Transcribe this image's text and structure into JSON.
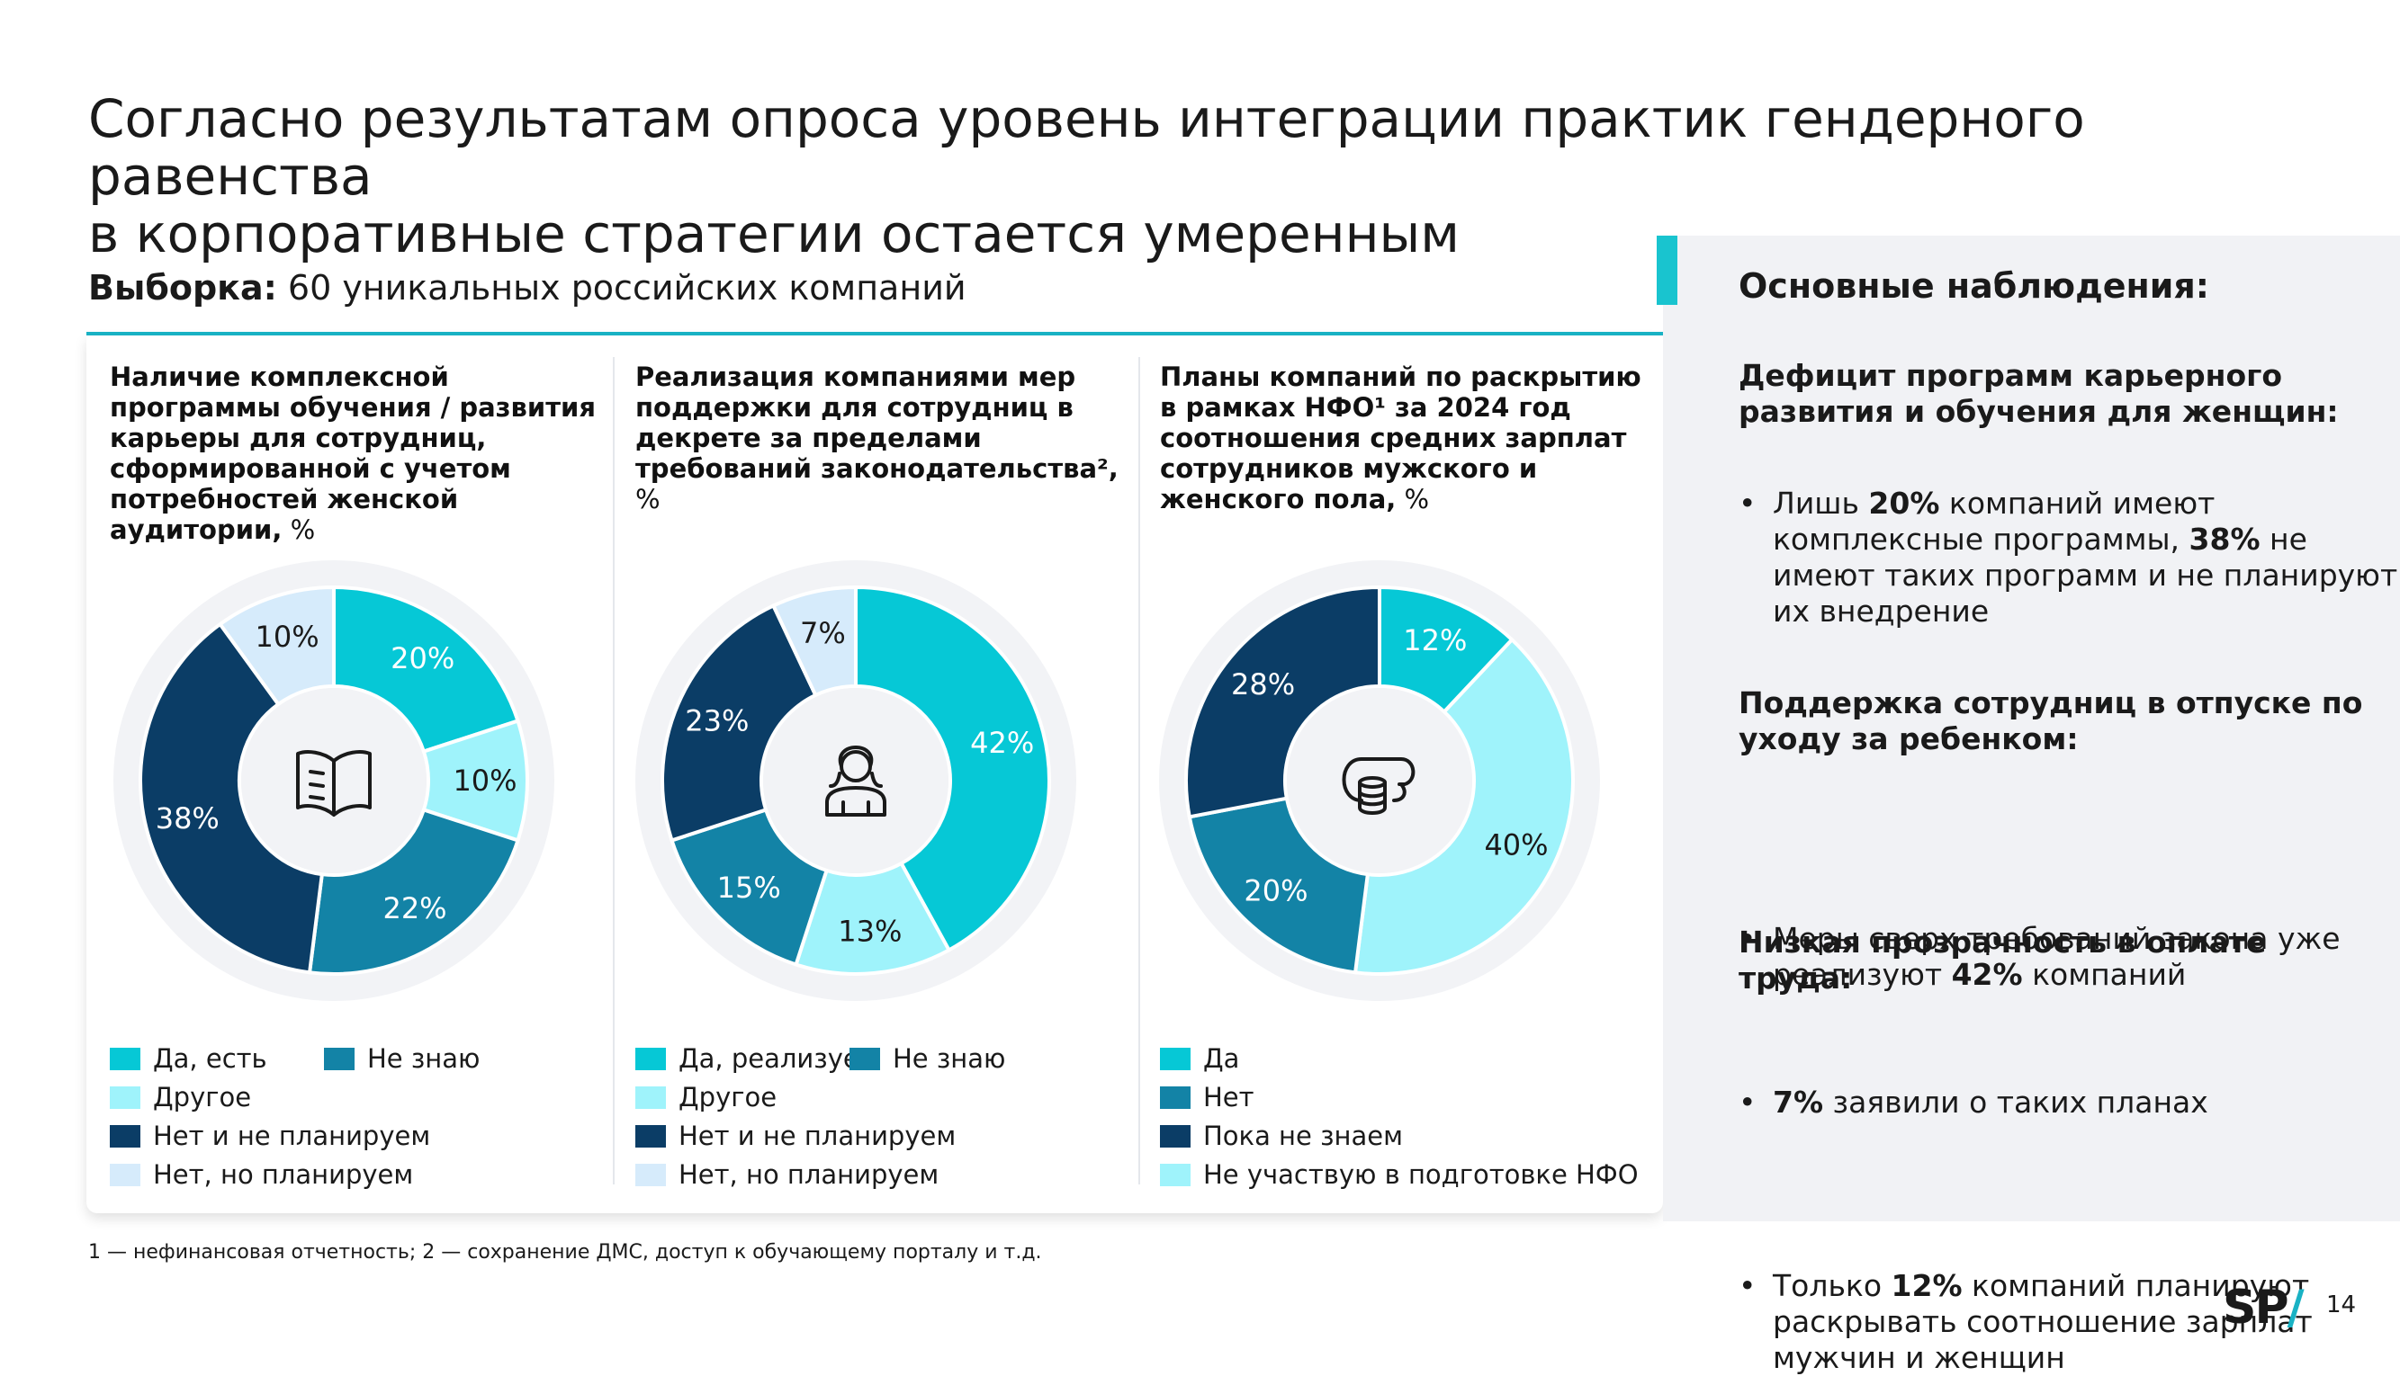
{
  "title_line1": "Согласно результатам опроса уровень интеграции практик гендерного равенства",
  "title_line2": "в корпоративные стратегии остается умеренным",
  "sample": {
    "label": "Выборка:",
    "text": " 60 уникальных российских компаний"
  },
  "colors": {
    "teal": "#06c8d6",
    "light_cyan": "#9ff3fb",
    "mid_blue": "#1383a6",
    "navy": "#0b3d66",
    "pale_blue": "#d6ebfb",
    "ring": "#f2f3f6"
  },
  "chart_data": [
    {
      "type": "pie",
      "title_bold": "Наличие комплексной программы обучения / развития карьеры для сотрудниц, сформированной с учетом потребностей женской аудитории,",
      "title_unit": " %",
      "icon": "book-icon",
      "slices": [
        {
          "label": "Да, есть",
          "value": 20,
          "color": "#06c8d6",
          "text_color": "#ffffff"
        },
        {
          "label": "Другое",
          "value": 10,
          "color": "#9ff3fb",
          "text_color": "#1a1a1a"
        },
        {
          "label": "Не знаю",
          "value": 22,
          "color": "#1383a6",
          "text_color": "#ffffff"
        },
        {
          "label": "Нет и не планируем",
          "value": 38,
          "color": "#0b3d66",
          "text_color": "#ffffff"
        },
        {
          "label": "Нет, но планируем",
          "value": 10,
          "color": "#d6ebfb",
          "text_color": "#1a1a1a"
        }
      ],
      "legend": [
        {
          "label": "Да, есть",
          "color": "#06c8d6",
          "col": 0,
          "row": 0
        },
        {
          "label": "Не знаю",
          "color": "#1383a6",
          "col": 1,
          "row": 0
        },
        {
          "label": "Другое",
          "color": "#9ff3fb",
          "col": 0,
          "row": 1
        },
        {
          "label": "Нет и не планируем",
          "color": "#0b3d66",
          "col": 0,
          "row": 2
        },
        {
          "label": "Нет, но планируем",
          "color": "#d6ebfb",
          "col": 0,
          "row": 3
        }
      ]
    },
    {
      "type": "pie",
      "title_bold": "Реализация компаниями мер поддержки для сотрудниц в декрете за пределами требований законодательства²,",
      "title_unit": " %",
      "icon": "woman-icon",
      "slices": [
        {
          "label": "Да, реализуем",
          "value": 42,
          "color": "#06c8d6",
          "text_color": "#ffffff"
        },
        {
          "label": "Другое",
          "value": 13,
          "color": "#9ff3fb",
          "text_color": "#1a1a1a"
        },
        {
          "label": "Не знаю",
          "value": 15,
          "color": "#1383a6",
          "text_color": "#ffffff"
        },
        {
          "label": "Нет и не планируем",
          "value": 23,
          "color": "#0b3d66",
          "text_color": "#ffffff"
        },
        {
          "label": "Нет, но планируем",
          "value": 7,
          "color": "#d6ebfb",
          "text_color": "#1a1a1a"
        }
      ],
      "legend": [
        {
          "label": "Да, реализуем",
          "color": "#06c8d6",
          "col": 0,
          "row": 0
        },
        {
          "label": "Не знаю",
          "color": "#1383a6",
          "col": 1,
          "row": 0
        },
        {
          "label": "Другое",
          "color": "#9ff3fb",
          "col": 0,
          "row": 1
        },
        {
          "label": "Нет и не планируем",
          "color": "#0b3d66",
          "col": 0,
          "row": 2
        },
        {
          "label": "Нет, но планируем",
          "color": "#d6ebfb",
          "col": 0,
          "row": 3
        }
      ]
    },
    {
      "type": "pie",
      "title_bold": "Планы компаний по раскрытию в рамках НФО¹ за 2024 год соотношения средних зарплат сотрудников мужского и женского пола,",
      "title_unit": " %",
      "icon": "coins-icon",
      "slices": [
        {
          "label": "Да",
          "value": 12,
          "color": "#06c8d6",
          "text_color": "#ffffff"
        },
        {
          "label": "Не участвую в подготовке НФО",
          "value": 40,
          "color": "#9ff3fb",
          "text_color": "#1a1a1a"
        },
        {
          "label": "Нет",
          "value": 20,
          "color": "#1383a6",
          "text_color": "#ffffff"
        },
        {
          "label": "Пока не знаем",
          "value": 28,
          "color": "#0b3d66",
          "text_color": "#ffffff"
        }
      ],
      "legend": [
        {
          "label": "Да",
          "color": "#06c8d6",
          "col": 0,
          "row": 0
        },
        {
          "label": "Нет",
          "color": "#1383a6",
          "col": 0,
          "row": 1
        },
        {
          "label": "Пока не знаем",
          "color": "#0b3d66",
          "col": 0,
          "row": 2
        },
        {
          "label": "Не участвую в подготовке НФО",
          "color": "#9ff3fb",
          "col": 0,
          "row": 3
        }
      ]
    }
  ],
  "footnote": "1 — нефинансовая отчетность; 2 — сохранение ДМС, доступ к обучающему порталу и т.д.",
  "observations": {
    "title": "Основные наблюдения:",
    "s1_head": "Дефицит программ карьерного развития и обучения для женщин:",
    "s1_b1_pre": "Лишь ",
    "s1_b1_bold": "20%",
    "s1_b1_mid": " компаний имеют комплексные программы, ",
    "s1_b1_bold2": "38%",
    "s1_b1_post": " не имеют таких программ и не планируют их внедрение",
    "s2_head": "Поддержка сотрудниц в отпуске по уходу за ребенком:",
    "s2_b1_pre": "Меры сверх требований закона уже реализуют ",
    "s2_b1_bold": "42%",
    "s2_b1_post": " компаний",
    "s2_b2_bold": "7%",
    "s2_b2_post": " заявили о таких планах",
    "s3_head": "Низкая прозрачность в оплате труда:",
    "s3_b1_pre": "Только ",
    "s3_b1_bold": "12%",
    "s3_b1_post": " компаний планируют раскрывать соотношение зарплат мужчин и женщин"
  },
  "logo": {
    "text": "SP",
    "slash": "/"
  },
  "page_number": "14"
}
